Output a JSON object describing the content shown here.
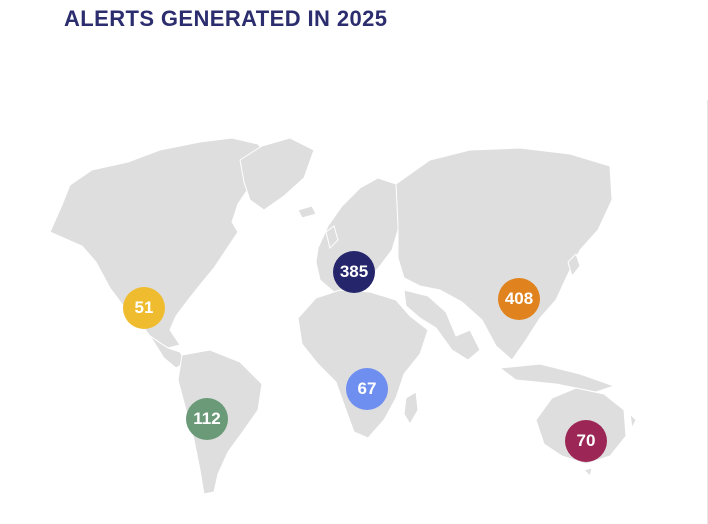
{
  "title": "ALERTS GENERATED IN 2025",
  "colors": {
    "title": "#2b2d6e",
    "land": "#dedede",
    "border": "#ffffff"
  },
  "regions": [
    {
      "name": "north-america",
      "value": "51",
      "color": "#f0bc2f"
    },
    {
      "name": "south-america",
      "value": "112",
      "color": "#6a9a78"
    },
    {
      "name": "europe",
      "value": "385",
      "color": "#25256b"
    },
    {
      "name": "africa",
      "value": "67",
      "color": "#6f8ff0"
    },
    {
      "name": "asia",
      "value": "408",
      "color": "#e0831e"
    },
    {
      "name": "oceania",
      "value": "70",
      "color": "#9c2655"
    }
  ]
}
